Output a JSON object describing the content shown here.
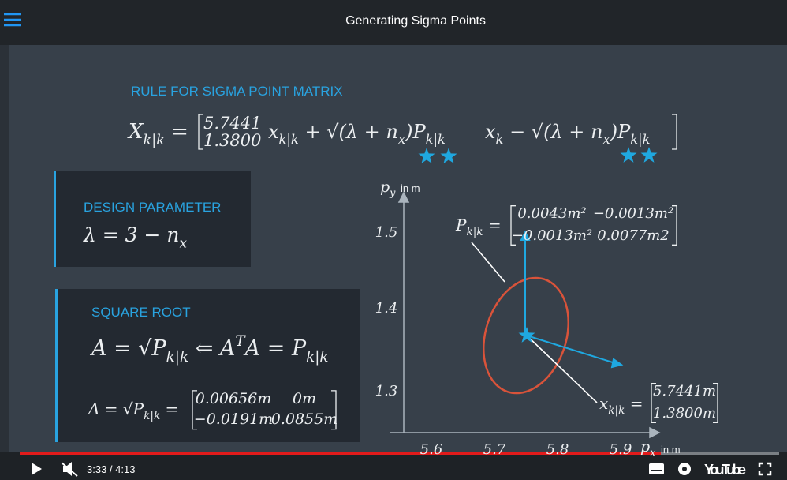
{
  "header": {
    "title": "Generating Sigma Points"
  },
  "rule": {
    "heading": "RULE FOR SIGMA POINT MATRIX",
    "lhs": [
      "X",
      {
        "sub": "k|k"
      },
      " ="
    ],
    "column": [
      "5.7441",
      "1.3800"
    ],
    "term_plus": [
      "x",
      {
        "sub": "k|k"
      },
      " + √(λ + n",
      {
        "sub": "x"
      },
      ")P",
      {
        "sub": "k|k"
      }
    ],
    "term_minus": [
      "x",
      {
        "sub": "k"
      },
      " − √(λ + n",
      {
        "sub": "x"
      },
      ")P",
      {
        "sub": "k|k"
      }
    ]
  },
  "design": {
    "heading": "DESIGN PARAMETER",
    "formula": [
      "λ = 3 − n",
      {
        "sub": "x"
      }
    ]
  },
  "square_root": {
    "heading": "SQUARE ROOT",
    "formula": [
      "A = √P",
      {
        "sub": "k|k"
      },
      " ⇐ A",
      {
        "sup": "T"
      },
      "A = P",
      {
        "sub": "k|k"
      }
    ],
    "result": [
      "A = √P",
      {
        "sub": "k|k"
      },
      " ="
    ],
    "matrix": [
      [
        "0.00656m",
        "0m"
      ],
      [
        "−0.0191m",
        "0.0855m"
      ]
    ]
  },
  "plot": {
    "y_label": [
      "p",
      {
        "sub": "y"
      }
    ],
    "y_unit": "in m",
    "x_label": [
      "p",
      {
        "sub": "x"
      }
    ],
    "x_unit": "in m",
    "y_ticks": [
      "1.5",
      "1.4",
      "1.3"
    ],
    "x_ticks": [
      "5.6",
      "5.7",
      "5.8",
      "5.9"
    ],
    "covariance": {
      "label": [
        "P",
        {
          "sub": "k|k"
        },
        " ="
      ],
      "matrix": [
        [
          "0.0043m²",
          "−0.0013m²"
        ],
        [
          "−0.0013m²",
          "0.0077m2"
        ]
      ]
    },
    "mean": {
      "label": [
        "x",
        {
          "sub": "k|k"
        },
        " ="
      ],
      "matrix": [
        [
          "5.7441m"
        ],
        [
          "1.3800m"
        ]
      ]
    }
  },
  "player": {
    "time": "3:33 / 4:13",
    "logo": "YouTube"
  }
}
